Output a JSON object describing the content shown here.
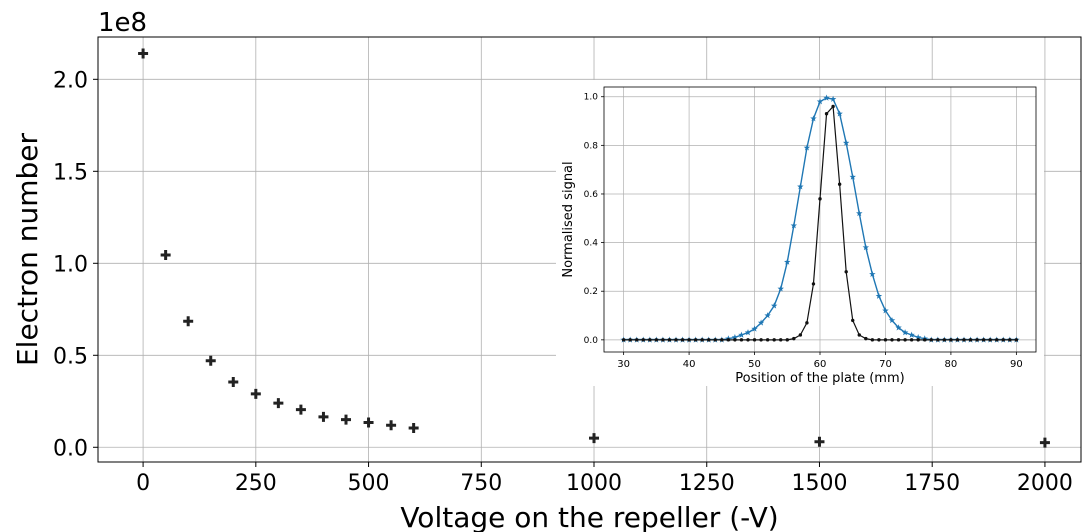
{
  "chart_data": [
    {
      "type": "scatter",
      "xlabel": "Voltage on the repeller (-V)",
      "ylabel": "Electron number",
      "offset_text": "1e8",
      "xlim": [
        -100,
        2080
      ],
      "ylim": [
        -0.08,
        2.23
      ],
      "xticks": [
        0,
        250,
        500,
        750,
        1000,
        1250,
        1500,
        1750,
        2000
      ],
      "yticks": [
        0.0,
        0.5,
        1.0,
        1.5,
        2.0
      ],
      "ytick_labels": [
        "0.0",
        "0.5",
        "1.0",
        "1.5",
        "2.0"
      ],
      "grid": true,
      "marker": "plus",
      "color": "#000000",
      "x": [
        0,
        50,
        100,
        150,
        200,
        250,
        300,
        350,
        400,
        450,
        500,
        550,
        600,
        1000,
        1500,
        2000
      ],
      "y": [
        2.14,
        1.045,
        0.685,
        0.47,
        0.355,
        0.29,
        0.24,
        0.205,
        0.165,
        0.15,
        0.135,
        0.12,
        0.105,
        0.05,
        0.03,
        0.025
      ]
    },
    {
      "type": "line",
      "inset": true,
      "xlabel": "Position of the plate (mm)",
      "ylabel": "Normalised signal",
      "xlim": [
        27,
        93
      ],
      "ylim": [
        -0.05,
        1.04
      ],
      "xticks": [
        30,
        40,
        50,
        60,
        70,
        80,
        90
      ],
      "yticks": [
        0.0,
        0.2,
        0.4,
        0.6,
        0.8,
        1.0
      ],
      "ytick_labels": [
        "0.0",
        "0.2",
        "0.4",
        "0.6",
        "0.8",
        "1.0"
      ],
      "grid": true,
      "series": [
        {
          "color": "#1f77b4",
          "marker": "star",
          "x": [
            30,
            31,
            32,
            33,
            34,
            35,
            36,
            37,
            38,
            39,
            40,
            41,
            42,
            43,
            44,
            45,
            46,
            47,
            48,
            49,
            50,
            51,
            52,
            53,
            54,
            55,
            56,
            57,
            58,
            59,
            60,
            61,
            62,
            63,
            64,
            65,
            66,
            67,
            68,
            69,
            70,
            71,
            72,
            73,
            74,
            75,
            76,
            77,
            78,
            79,
            80,
            81,
            82,
            83,
            84,
            85,
            86,
            87,
            88,
            89,
            90
          ],
          "y": [
            0,
            0,
            0,
            0,
            0,
            0,
            0,
            0,
            0,
            0,
            0,
            0,
            0,
            0,
            0,
            0,
            0.005,
            0.01,
            0.02,
            0.03,
            0.045,
            0.07,
            0.1,
            0.14,
            0.21,
            0.32,
            0.47,
            0.63,
            0.79,
            0.91,
            0.98,
            0.995,
            0.99,
            0.93,
            0.81,
            0.67,
            0.52,
            0.38,
            0.27,
            0.18,
            0.12,
            0.08,
            0.05,
            0.03,
            0.02,
            0.01,
            0.005,
            0,
            0,
            0,
            0,
            0,
            0,
            0,
            0,
            0,
            0,
            0,
            0,
            0,
            0
          ]
        },
        {
          "color": "#111111",
          "marker": "dot",
          "x": [
            30,
            31,
            32,
            33,
            34,
            35,
            36,
            37,
            38,
            39,
            40,
            41,
            42,
            43,
            44,
            45,
            46,
            47,
            48,
            49,
            50,
            51,
            52,
            53,
            54,
            55,
            56,
            57,
            58,
            59,
            60,
            61,
            62,
            63,
            64,
            65,
            66,
            67,
            68,
            69,
            70,
            71,
            72,
            73,
            74,
            75,
            76,
            77,
            78,
            79,
            80,
            81,
            82,
            83,
            84,
            85,
            86,
            87,
            88,
            89,
            90
          ],
          "y": [
            0,
            0,
            0,
            0,
            0,
            0,
            0,
            0,
            0,
            0,
            0,
            0,
            0,
            0,
            0,
            0,
            0,
            0,
            0,
            0,
            0,
            0,
            0,
            0,
            0,
            0,
            0.005,
            0.02,
            0.07,
            0.23,
            0.58,
            0.93,
            0.96,
            0.64,
            0.28,
            0.08,
            0.02,
            0.005,
            0,
            0,
            0,
            0,
            0,
            0,
            0,
            0,
            0,
            0,
            0,
            0,
            0,
            0,
            0,
            0,
            0,
            0,
            0,
            0,
            0,
            0,
            0
          ]
        }
      ]
    }
  ]
}
